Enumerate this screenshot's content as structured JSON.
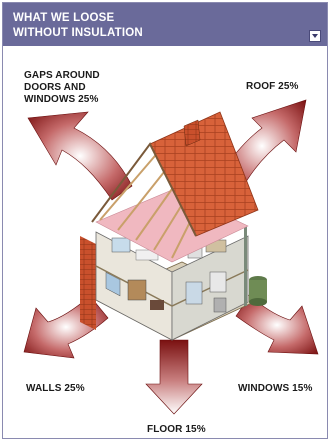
{
  "header": {
    "title_line1": "WHAT WE LOOSE",
    "title_line2": "WITHOUT INSULATION"
  },
  "labels": {
    "gaps_line1": "GAPS AROUND",
    "gaps_line2": "DOORS AND",
    "gaps_line3": "WINDOWS 25%",
    "roof": "ROOF 25%",
    "walls": "WALLS 25%",
    "windows": "WINDOWS 15%",
    "floor": "FLOOR 15%"
  },
  "colors": {
    "header_bg": "#6a6a9a",
    "arrow": "#8b1a1a",
    "roof_tile": "#d8623a",
    "insulation": "#f0b8c0"
  }
}
